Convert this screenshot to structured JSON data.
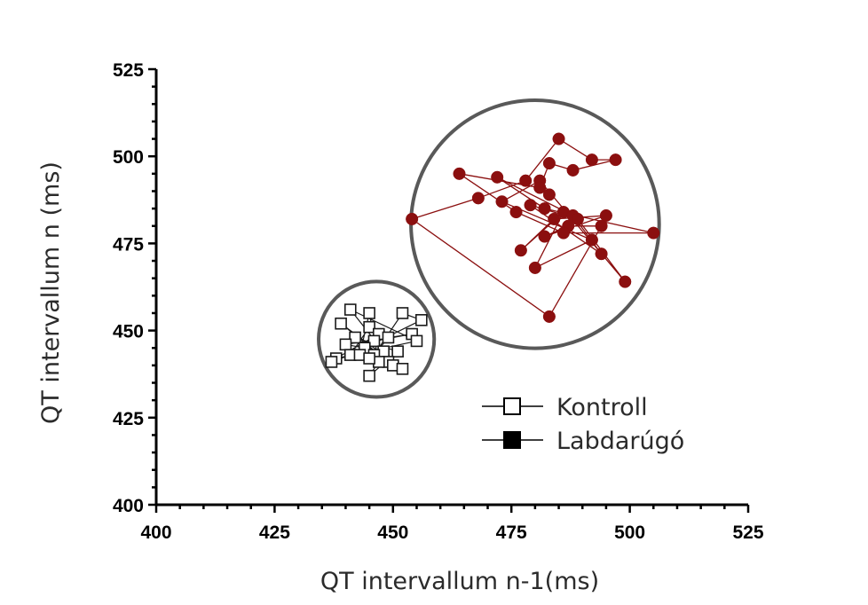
{
  "chart_data": {
    "type": "scatter",
    "xlabel": "QT intervallum n-1(ms)",
    "ylabel": "QT intervallum n (ms)",
    "xlim": [
      400,
      525
    ],
    "ylim": [
      400,
      525
    ],
    "x_ticks": [
      "400",
      "425",
      "450",
      "475",
      "500",
      "525"
    ],
    "y_ticks": [
      "400",
      "425",
      "450",
      "475",
      "500",
      "525"
    ],
    "grid": false,
    "legend_position": "bottom-right",
    "series": [
      {
        "name": "Kontroll",
        "marker": "open-square",
        "color": "#1a1a1a",
        "points": [
          [
            441,
            456
          ],
          [
            445,
            455
          ],
          [
            452,
            455
          ],
          [
            456,
            453
          ],
          [
            439,
            452
          ],
          [
            445,
            451
          ],
          [
            447,
            449
          ],
          [
            442,
            448
          ],
          [
            449,
            448
          ],
          [
            454,
            449
          ],
          [
            446,
            447
          ],
          [
            455,
            447
          ],
          [
            440,
            446
          ],
          [
            444,
            445
          ],
          [
            448,
            444
          ],
          [
            441,
            443
          ],
          [
            446,
            443
          ],
          [
            443,
            443
          ],
          [
            451,
            444
          ],
          [
            438,
            442
          ],
          [
            449,
            441
          ],
          [
            447,
            441
          ],
          [
            445,
            442
          ],
          [
            437,
            441
          ],
          [
            450,
            440
          ],
          [
            452,
            439
          ],
          [
            445,
            437
          ]
        ],
        "path": [
          [
            437,
            441
          ],
          [
            441,
            443
          ],
          [
            445,
            451
          ],
          [
            449,
            448
          ],
          [
            446,
            443
          ],
          [
            452,
            455
          ],
          [
            456,
            453
          ],
          [
            444,
            445
          ],
          [
            447,
            449
          ],
          [
            438,
            442
          ],
          [
            455,
            447
          ],
          [
            441,
            456
          ],
          [
            448,
            444
          ],
          [
            440,
            446
          ],
          [
            454,
            449
          ],
          [
            446,
            447
          ],
          [
            452,
            439
          ],
          [
            439,
            452
          ],
          [
            449,
            441
          ],
          [
            442,
            448
          ],
          [
            451,
            444
          ],
          [
            445,
            437
          ],
          [
            447,
            441
          ],
          [
            445,
            455
          ],
          [
            443,
            443
          ],
          [
            450,
            440
          ]
        ]
      },
      {
        "name": "Labdarúgó",
        "marker": "filled-circle",
        "color": "#8b0f0f",
        "points": [
          [
            485,
            505
          ],
          [
            483,
            498
          ],
          [
            488,
            496
          ],
          [
            492,
            499
          ],
          [
            497,
            499
          ],
          [
            464,
            495
          ],
          [
            472,
            494
          ],
          [
            478,
            493
          ],
          [
            481,
            493
          ],
          [
            481,
            491
          ],
          [
            483,
            489
          ],
          [
            468,
            488
          ],
          [
            473,
            487
          ],
          [
            479,
            486
          ],
          [
            482,
            485
          ],
          [
            476,
            484
          ],
          [
            486,
            484
          ],
          [
            488,
            483
          ],
          [
            484,
            482
          ],
          [
            489,
            482
          ],
          [
            495,
            483
          ],
          [
            454,
            482
          ],
          [
            487,
            480
          ],
          [
            494,
            480
          ],
          [
            486,
            478
          ],
          [
            482,
            477
          ],
          [
            492,
            476
          ],
          [
            505,
            478
          ],
          [
            477,
            473
          ],
          [
            494,
            472
          ],
          [
            480,
            468
          ],
          [
            499,
            464
          ],
          [
            483,
            454
          ]
        ],
        "path": [
          [
            454,
            482
          ],
          [
            468,
            488
          ],
          [
            478,
            493
          ],
          [
            485,
            505
          ],
          [
            492,
            499
          ],
          [
            497,
            499
          ],
          [
            488,
            496
          ],
          [
            483,
            498
          ],
          [
            481,
            491
          ],
          [
            464,
            495
          ],
          [
            476,
            484
          ],
          [
            486,
            478
          ],
          [
            505,
            478
          ],
          [
            482,
            485
          ],
          [
            472,
            494
          ],
          [
            488,
            483
          ],
          [
            494,
            472
          ],
          [
            479,
            486
          ],
          [
            489,
            482
          ],
          [
            499,
            464
          ],
          [
            481,
            493
          ],
          [
            473,
            487
          ],
          [
            492,
            476
          ],
          [
            480,
            468
          ],
          [
            486,
            484
          ],
          [
            477,
            473
          ],
          [
            484,
            482
          ],
          [
            495,
            483
          ],
          [
            482,
            477
          ],
          [
            487,
            480
          ],
          [
            494,
            480
          ],
          [
            483,
            454
          ],
          [
            454,
            482
          ]
        ]
      }
    ],
    "cluster_circles": [
      {
        "series": "Kontroll",
        "center": [
          446.5,
          447.5
        ],
        "radius_x_units": 12.2
      },
      {
        "series": "Labdarúgó",
        "center": [
          480,
          480.5
        ],
        "radius_x_units": 26.2
      }
    ]
  }
}
